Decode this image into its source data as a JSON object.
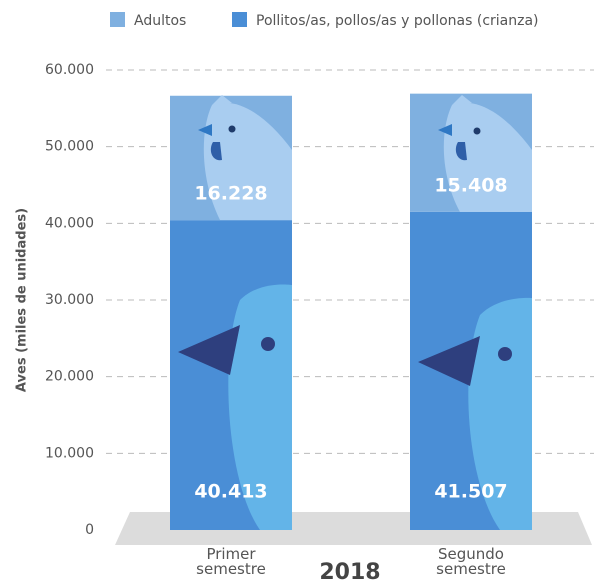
{
  "chart_data": {
    "type": "stacked_bar",
    "categories": [
      "Primer semestre",
      "Segundo semestre"
    ],
    "year_label": "2018",
    "ylabel": "Aves (miles de unidades)",
    "ylim": [
      0,
      60000
    ],
    "yticks": [
      0,
      {
        "value": 10000,
        "label": "10.000"
      },
      {
        "value": 20000,
        "label": "20.000"
      },
      {
        "value": 30000,
        "label": "30.000"
      },
      {
        "value": 40000,
        "label": "40.000"
      },
      {
        "value": 50000,
        "label": "50.000"
      },
      {
        "value": 60000,
        "label": "60.000"
      }
    ],
    "grid": true,
    "legend": "top",
    "series": [
      {
        "name": "Pollitos/as, pollos/as y pollonas (crianza)",
        "color": "#4a8ed6",
        "values": [
          40413,
          41507
        ],
        "value_labels": [
          "40.413",
          "41.507"
        ]
      },
      {
        "name": "Adultos",
        "color": "#7fb0e0",
        "values": [
          16228,
          15408
        ],
        "value_labels": [
          "16.228",
          "15.408"
        ]
      }
    ]
  }
}
